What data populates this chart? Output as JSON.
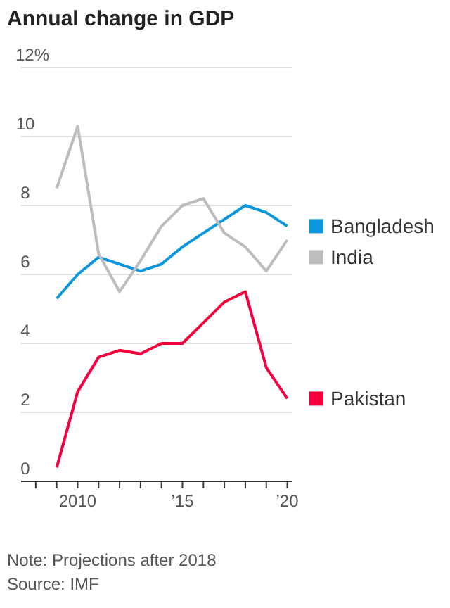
{
  "chart_data": {
    "type": "line",
    "title": "Annual change in GDP",
    "x": [
      2009,
      2010,
      2011,
      2012,
      2013,
      2014,
      2015,
      2016,
      2017,
      2018,
      2019,
      2020
    ],
    "series": [
      {
        "name": "Bangladesh",
        "color": "#0b97e0",
        "values": [
          5.3,
          6.0,
          6.5,
          6.3,
          6.1,
          6.3,
          6.8,
          7.2,
          7.6,
          8.0,
          7.8,
          7.4
        ]
      },
      {
        "name": "India",
        "color": "#bdbdbd",
        "values": [
          8.5,
          10.3,
          6.6,
          5.5,
          6.4,
          7.4,
          8.0,
          8.2,
          7.2,
          6.8,
          6.1,
          7.0
        ]
      },
      {
        "name": "Pakistan",
        "color": "#f5003d",
        "values": [
          0.4,
          2.6,
          3.6,
          3.8,
          3.7,
          4.0,
          4.0,
          4.6,
          5.2,
          5.5,
          3.3,
          2.4
        ]
      }
    ],
    "xlim": [
      2007.3,
      2020.25
    ],
    "xticks": [
      {
        "value": 2008,
        "label": null
      },
      {
        "value": 2009,
        "label": null
      },
      2010,
      {
        "value": 2011,
        "label": null
      },
      {
        "value": 2012,
        "label": null
      },
      {
        "value": 2013,
        "label": null
      },
      {
        "value": 2014,
        "label": null
      },
      {
        "value": 2015,
        "label": "’15"
      },
      {
        "value": 2016,
        "label": null
      },
      {
        "value": 2017,
        "label": null
      },
      {
        "value": 2018,
        "label": null
      },
      {
        "value": 2019,
        "label": null
      },
      {
        "value": 2020,
        "label": "’20"
      }
    ],
    "ylim": [
      0,
      12
    ],
    "yticks": [
      0,
      2,
      4,
      6,
      8,
      10,
      {
        "value": 12,
        "label": "12%"
      }
    ],
    "grid": "y",
    "legend": "right",
    "marker": "none",
    "line_style": "solid",
    "annotations": [
      "Note: Projections after 2018",
      "Source: IMF"
    ]
  }
}
